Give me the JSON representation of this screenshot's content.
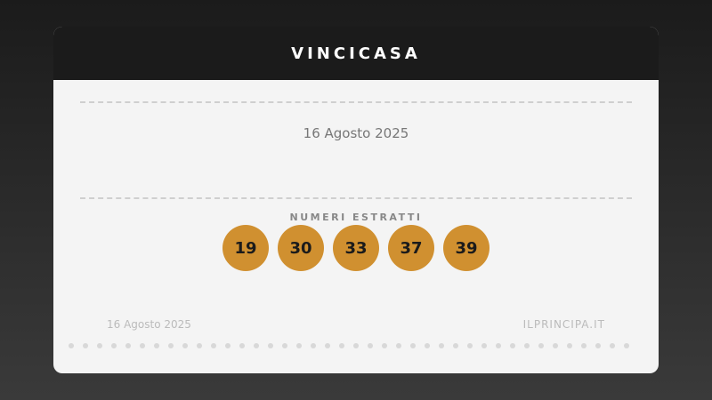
{
  "header": {
    "title": "VINCICASA"
  },
  "draw": {
    "date": "16 Agosto 2025",
    "numbers_label": "NUMERI ESTRATTI",
    "numbers": [
      "19",
      "30",
      "33",
      "37",
      "39"
    ],
    "ball_color": "#d09030"
  },
  "footer": {
    "date": "16 Agosto 2025",
    "brand": "ILPRINCIPA.IT"
  }
}
